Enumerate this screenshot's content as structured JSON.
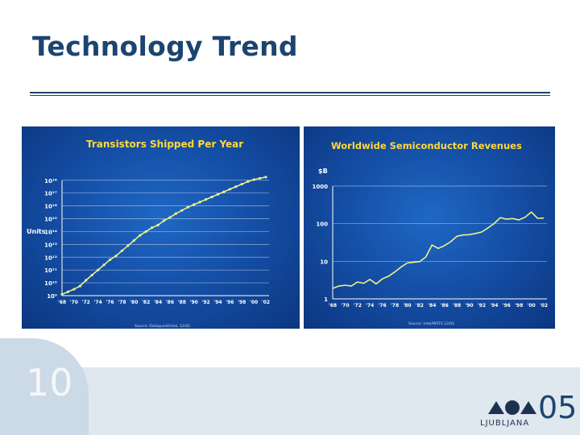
{
  "slide": {
    "title": "Technology Trend",
    "page_number": "10",
    "logo_city": "LJUBLJANA",
    "logo_year": "05"
  },
  "colors": {
    "title": "#1c4470",
    "panel_bg": "#1550a8",
    "panel_title": "#ffd83a",
    "line": "#eef28a",
    "grid": "#c9d6ee"
  },
  "chart_data": [
    {
      "type": "line",
      "title": "Transistors Shipped Per Year",
      "ylabel": "Units",
      "log_scale": true,
      "x_ticks": [
        "'68",
        "'70",
        "'72",
        "'74",
        "'76",
        "'78",
        "'80",
        "'82",
        "'84",
        "'86",
        "'88",
        "'90",
        "'92",
        "'94",
        "'96",
        "'98",
        "'00",
        "'02"
      ],
      "y_ticks": [
        "10⁹",
        "10¹⁰",
        "10¹¹",
        "10¹²",
        "10¹³",
        "10¹⁴",
        "10¹⁵",
        "10¹⁶",
        "10¹⁷",
        "10¹⁸"
      ],
      "ylim": [
        9,
        18.3
      ],
      "source": "Source: Dataquest/Intel, 12/02",
      "series": [
        {
          "x": [
            1968,
            1969,
            1970,
            1971,
            1972,
            1973,
            1974,
            1975,
            1976,
            1977,
            1978,
            1979,
            1980,
            1981,
            1982,
            1983,
            1984,
            1985,
            1986,
            1987,
            1988,
            1989,
            1990,
            1991,
            1992,
            1993,
            1994,
            1995,
            1996,
            1997,
            1998,
            1999,
            2000,
            2001,
            2002
          ],
          "y": [
            9.1,
            9.3,
            9.5,
            9.75,
            10.2,
            10.6,
            11.0,
            11.4,
            11.8,
            12.1,
            12.5,
            12.9,
            13.3,
            13.7,
            14.0,
            14.3,
            14.5,
            14.85,
            15.1,
            15.4,
            15.65,
            15.9,
            16.1,
            16.3,
            16.5,
            16.7,
            16.9,
            17.1,
            17.3,
            17.5,
            17.7,
            17.9,
            18.05,
            18.15,
            18.25
          ]
        }
      ]
    },
    {
      "type": "line",
      "title": "Worldwide Semiconductor Revenues",
      "ylabel": "$B",
      "log_scale": true,
      "x_ticks": [
        "'68",
        "'70",
        "'72",
        "'74",
        "'76",
        "'78",
        "'80",
        "'82",
        "'84",
        "'86",
        "'88",
        "'90",
        "'92",
        "'94",
        "'96",
        "'98",
        "'00",
        "'02"
      ],
      "y_ticks": [
        "1",
        "10",
        "100",
        "1000"
      ],
      "ylim": [
        1,
        1000
      ],
      "source": "Source: Intel/WSTS 12/02",
      "series": [
        {
          "x": [
            1968,
            1969,
            1970,
            1971,
            1972,
            1973,
            1974,
            1975,
            1976,
            1977,
            1978,
            1979,
            1980,
            1981,
            1982,
            1983,
            1984,
            1985,
            1986,
            1987,
            1988,
            1989,
            1990,
            1991,
            1992,
            1993,
            1994,
            1995,
            1996,
            1997,
            1998,
            1999,
            2000,
            2001,
            2002
          ],
          "y": [
            1.9,
            2.2,
            2.3,
            2.2,
            2.8,
            2.6,
            3.3,
            2.5,
            3.4,
            4.0,
            5.2,
            7.0,
            9.0,
            9.4,
            9.8,
            13.0,
            27,
            22,
            26,
            33,
            46,
            50,
            51,
            55,
            60,
            77,
            101,
            144,
            132,
            137,
            126,
            149,
            204,
            139,
            141
          ]
        }
      ]
    }
  ]
}
